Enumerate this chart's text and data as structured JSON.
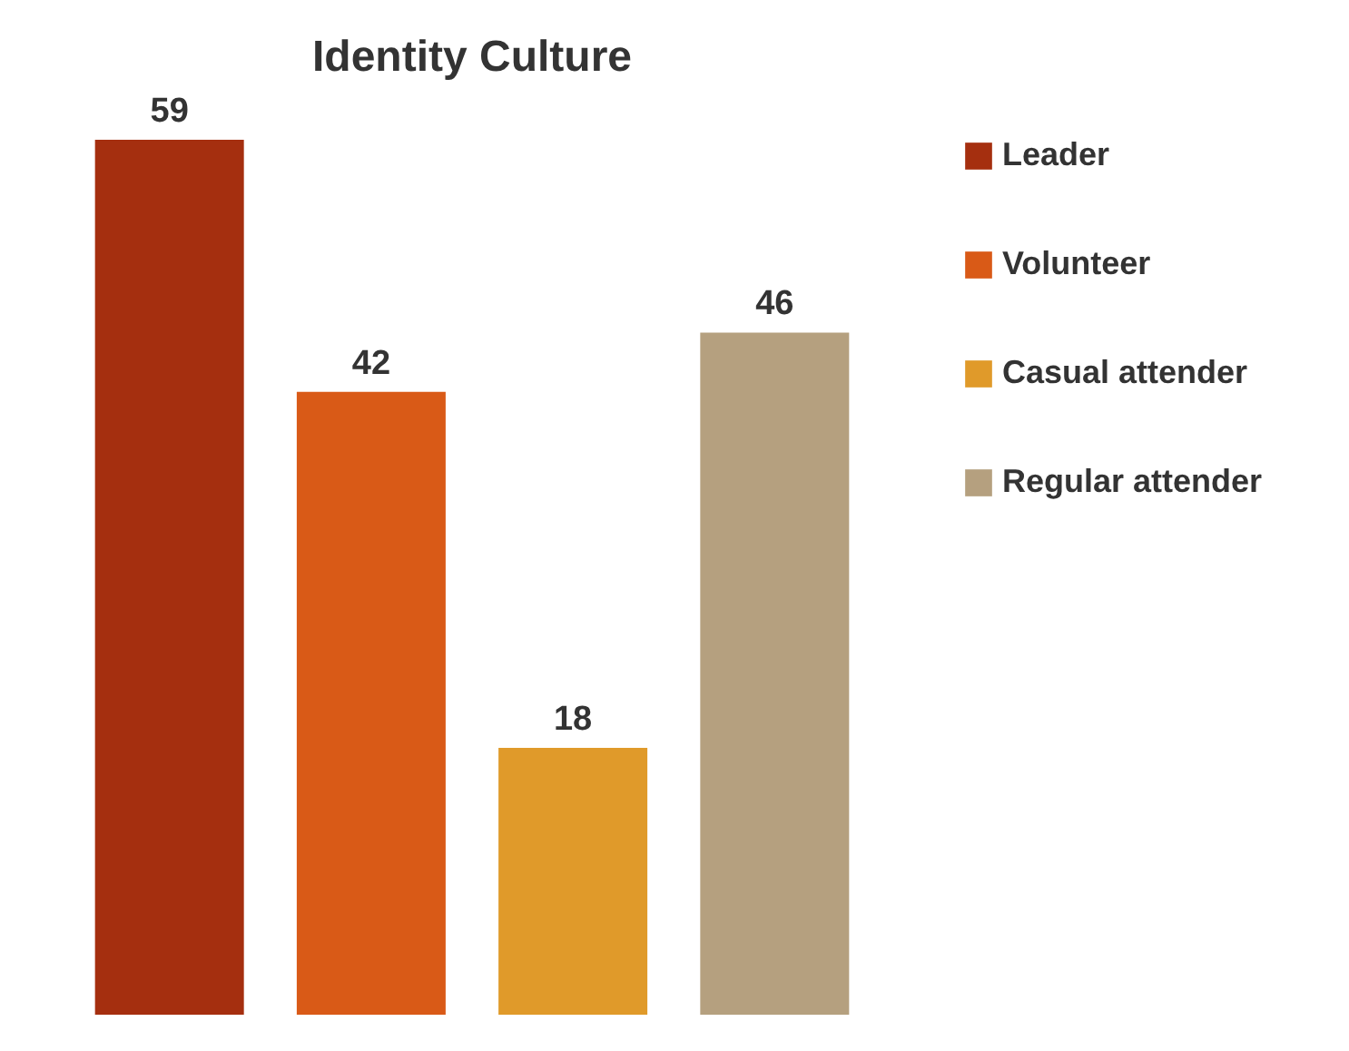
{
  "chart_data": {
    "type": "bar",
    "title": "Identity Culture",
    "categories": [
      null
    ],
    "series": [
      {
        "name": "Leader",
        "color": "#a52f0f",
        "values": [
          59
        ]
      },
      {
        "name": "Volunteer",
        "color": "#d95a17",
        "values": [
          42
        ]
      },
      {
        "name": "Casual attender",
        "color": "#e09a2a",
        "values": [
          18
        ]
      },
      {
        "name": "Regular attender",
        "color": "#b5a07f",
        "values": [
          46
        ]
      }
    ],
    "data_labels": true,
    "legend": "right"
  }
}
